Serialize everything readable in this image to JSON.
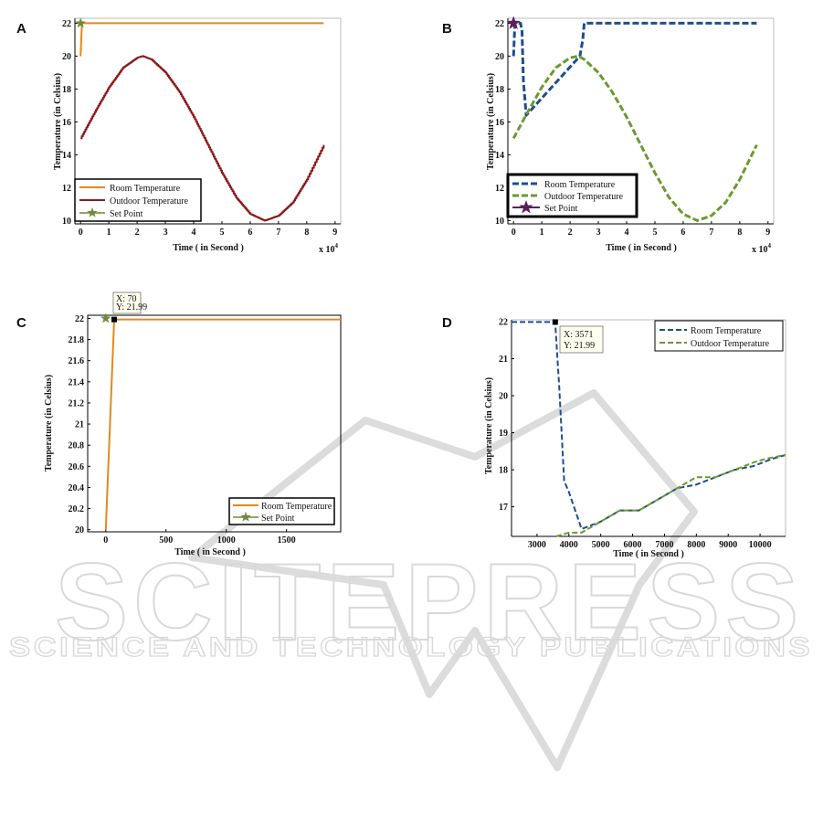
{
  "watermark": {
    "main": "SCITEPRESS",
    "sub": "SCIENCE AND TECHNOLOGY PUBLICATIONS"
  },
  "colors": {
    "orange": "#e08a1e",
    "dark_red": "#8b1a1a",
    "green_star": "#6f8a3a",
    "navy_dash": "#1f4e8c",
    "olive_dash": "#6a9a2e",
    "purple_star": "#5b1f5b"
  },
  "chart_data": [
    {
      "panel": "A",
      "type": "line",
      "xlabel": "Time ( in Second )",
      "ylabel": "Temperature (in Celsius)",
      "x_multiplier": "x 10",
      "x_multiplier_exp": "4",
      "xlim": [
        -0.2,
        9.2
      ],
      "ylim": [
        9.8,
        22.3
      ],
      "xticks": [
        0,
        1,
        2,
        3,
        4,
        5,
        6,
        7,
        8,
        9
      ],
      "yticks": [
        10,
        12,
        14,
        16,
        18,
        20,
        22
      ],
      "legend_placement": "bottom-left",
      "series": [
        {
          "name": "Room Temperature",
          "style": "solid",
          "color": "#e08a1e",
          "x": [
            0,
            0.05,
            0.1,
            1,
            2,
            3,
            4,
            5,
            6,
            7,
            8,
            8.6
          ],
          "y": [
            20,
            22,
            22,
            22,
            22,
            22,
            22,
            22,
            22,
            22,
            22,
            22
          ]
        },
        {
          "name": "Outdoor Temperature",
          "style": "stairs",
          "color": "#8b1a1a",
          "x": [
            0,
            0.5,
            1,
            1.5,
            2,
            2.2,
            2.5,
            3,
            3.5,
            4,
            4.5,
            5,
            5.5,
            6,
            6.5,
            7,
            7.5,
            8,
            8.6
          ],
          "y": [
            15,
            16.6,
            18.1,
            19.3,
            19.9,
            20,
            19.8,
            19.0,
            17.8,
            16.3,
            14.6,
            12.9,
            11.4,
            10.4,
            10.0,
            10.3,
            11.1,
            12.5,
            14.6
          ]
        },
        {
          "name": "Set Point",
          "style": "marker",
          "color": "#6f8a3a",
          "x": [
            0
          ],
          "y": [
            22
          ]
        }
      ]
    },
    {
      "panel": "B",
      "type": "line",
      "xlabel": "Time ( in Second )",
      "ylabel": "Temperature (in Celsius)",
      "x_multiplier": "x 10",
      "x_multiplier_exp": "4",
      "xlim": [
        -0.2,
        9.2
      ],
      "ylim": [
        9.8,
        22.3
      ],
      "xticks": [
        0,
        1,
        2,
        3,
        4,
        5,
        6,
        7,
        8,
        9
      ],
      "yticks": [
        10,
        12,
        14,
        16,
        18,
        20,
        22
      ],
      "legend_placement": "bottom-left",
      "series": [
        {
          "name": "Room Temperature",
          "style": "dashed",
          "color": "#1f4e8c",
          "x": [
            0,
            0.05,
            0.25,
            0.3,
            0.35,
            0.45,
            2.35,
            2.45,
            2.5,
            3,
            5,
            7,
            8.6
          ],
          "y": [
            20,
            22,
            22,
            21.5,
            18.5,
            16.4,
            20.0,
            21.0,
            22,
            22,
            22,
            22,
            22
          ]
        },
        {
          "name": "Outdoor Temperature",
          "style": "dashed",
          "color": "#6a9a2e",
          "x": [
            0,
            0.5,
            1,
            1.5,
            2,
            2.3,
            2.5,
            3,
            3.5,
            4,
            4.5,
            5,
            5.5,
            6,
            6.5,
            7,
            7.5,
            8,
            8.6
          ],
          "y": [
            15,
            16.6,
            18.1,
            19.3,
            19.9,
            20,
            19.8,
            19.0,
            17.8,
            16.3,
            14.6,
            12.9,
            11.4,
            10.4,
            10.0,
            10.3,
            11.1,
            12.5,
            14.6
          ]
        },
        {
          "name": "Set Point",
          "style": "marker",
          "color": "#5b1f5b",
          "x": [
            0
          ],
          "y": [
            22
          ]
        }
      ]
    },
    {
      "panel": "C",
      "type": "line",
      "xlabel": "Time ( in Second )",
      "ylabel": "Temperature (in Celsius)",
      "xlim": [
        -150,
        1950
      ],
      "ylim": [
        19.98,
        22.03
      ],
      "xticks": [
        0,
        500,
        1000,
        1500
      ],
      "yticks": [
        20,
        20.2,
        20.4,
        20.6,
        20.8,
        21,
        21.2,
        21.4,
        21.6,
        21.8,
        22
      ],
      "legend_placement": "bottom-right",
      "datatip": {
        "x": 70,
        "y": 21.99,
        "text_x": "X: 70",
        "text_y": "Y: 21.99"
      },
      "series": [
        {
          "name": "Room Temperature",
          "style": "solid",
          "color": "#e08a1e",
          "x": [
            0,
            70,
            200,
            500,
            1000,
            1500,
            1950
          ],
          "y": [
            20,
            21.99,
            21.99,
            21.99,
            21.99,
            21.99,
            21.99
          ]
        },
        {
          "name": "Set Point",
          "style": "marker",
          "color": "#6f8a3a",
          "x": [
            0
          ],
          "y": [
            22
          ]
        }
      ]
    },
    {
      "panel": "D",
      "type": "line",
      "xlabel": "Time ( in Second )",
      "ylabel": "Temperature (in Celsius)",
      "xlim": [
        2200,
        10800
      ],
      "ylim": [
        16.2,
        22.05
      ],
      "xticks": [
        3000,
        4000,
        5000,
        6000,
        7000,
        8000,
        9000,
        10000
      ],
      "yticks": [
        17,
        18,
        19,
        20,
        21,
        22
      ],
      "legend_placement": "top-right",
      "datatip": {
        "x": 3571,
        "y": 21.99,
        "text_x": "X: 3571",
        "text_y": "Y: 21.99"
      },
      "series": [
        {
          "name": "Room Temperature",
          "style": "dashed",
          "color": "#1f4e8c",
          "x": [
            2200,
            3571,
            3700,
            3850,
            4000,
            4400,
            5000,
            5600,
            6200,
            6800,
            7400,
            8000,
            8600,
            9200,
            9800,
            10400,
            10800
          ],
          "y": [
            21.99,
            21.99,
            20.2,
            17.7,
            17.4,
            16.4,
            16.6,
            16.9,
            16.9,
            17.2,
            17.5,
            17.6,
            17.8,
            18.0,
            18.1,
            18.3,
            18.4
          ]
        },
        {
          "name": "Outdoor Temperature",
          "style": "dashed",
          "color": "#6a9a2e",
          "x": [
            3600,
            3800,
            4000,
            4400,
            5000,
            5600,
            6200,
            6800,
            7400,
            8000,
            8600,
            9200,
            9800,
            10200,
            10800
          ],
          "y": [
            16.2,
            16.25,
            16.3,
            16.3,
            16.6,
            16.9,
            16.9,
            17.2,
            17.5,
            17.8,
            17.8,
            18.0,
            18.2,
            18.3,
            18.4
          ]
        }
      ]
    }
  ]
}
